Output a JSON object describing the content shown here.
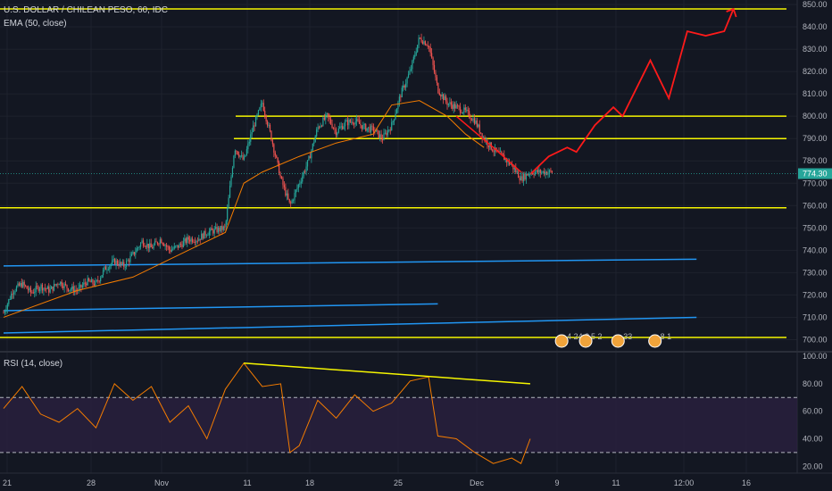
{
  "header": {
    "symbol_title": "U.S. DOLLAR / CHILEAN PESO, 60, IDC",
    "ema_label": "EMA (50, close)",
    "rsi_label": "RSI (14, close)"
  },
  "last_price": "774.30",
  "colors": {
    "background": "#131722",
    "up": "#26a69a",
    "down": "#ef5350",
    "ema": "#f57c00",
    "yellow": "#f5f500",
    "blue": "#2196f3",
    "forecast": "#ff1a1a",
    "rsi_line": "#f57c00",
    "rsi_band": "#2a2140"
  },
  "events": [
    {
      "label": "4 24 3",
      "x_day": 60.4
    },
    {
      "label": "5 2",
      "x_day": 63.0
    },
    {
      "label": "33",
      "x_day": 66.5
    },
    {
      "label": "8 1",
      "x_day": 70.5
    }
  ],
  "chart_data": [
    {
      "type": "line",
      "title": "U.S. DOLLAR / CHILEAN PESO, 60, IDC",
      "y_axis": {
        "ticks": [
          700,
          710,
          720,
          730,
          740,
          750,
          760,
          770,
          780,
          790,
          800,
          810,
          820,
          830,
          840,
          850
        ],
        "ylim": [
          695,
          852
        ]
      },
      "x_axis": {
        "ticks": [
          "21",
          "28",
          "Nov",
          "11",
          "18",
          "25",
          "Dec",
          "9",
          "11",
          "12:00",
          "16"
        ]
      },
      "series": [
        {
          "name": "EMA (50, close)",
          "points": [
            [
              0,
              710
            ],
            [
              8,
              722
            ],
            [
              14,
              728
            ],
            [
              20,
              740
            ],
            [
              24,
              748
            ],
            [
              26,
              770
            ],
            [
              28,
              775
            ],
            [
              32,
              782
            ],
            [
              36,
              788
            ],
            [
              40,
              792
            ],
            [
              42,
              805
            ],
            [
              45,
              807
            ],
            [
              48,
              800
            ],
            [
              50,
              792
            ],
            [
              52,
              786
            ]
          ]
        }
      ],
      "price_path": [
        [
          0,
          712
        ],
        [
          1,
          722
        ],
        [
          2,
          725
        ],
        [
          3,
          721
        ],
        [
          4,
          724
        ],
        [
          5,
          722
        ],
        [
          6,
          726
        ],
        [
          7,
          723
        ],
        [
          8,
          722
        ],
        [
          9,
          726
        ],
        [
          10,
          725
        ],
        [
          11,
          732
        ],
        [
          12,
          735
        ],
        [
          13,
          733
        ],
        [
          14,
          738
        ],
        [
          15,
          744
        ],
        [
          16,
          741
        ],
        [
          17,
          745
        ],
        [
          18,
          740
        ],
        [
          19,
          742
        ],
        [
          20,
          745
        ],
        [
          21,
          745
        ],
        [
          22,
          748
        ],
        [
          23,
          749
        ],
        [
          24,
          750
        ],
        [
          25,
          786
        ],
        [
          26,
          780
        ],
        [
          27,
          795
        ],
        [
          28,
          806
        ],
        [
          29,
          790
        ],
        [
          30,
          772
        ],
        [
          31,
          760
        ],
        [
          32,
          770
        ],
        [
          33,
          780
        ],
        [
          34,
          795
        ],
        [
          35,
          800
        ],
        [
          36,
          793
        ],
        [
          37,
          797
        ],
        [
          38,
          798
        ],
        [
          39,
          795
        ],
        [
          40,
          794
        ],
        [
          41,
          790
        ],
        [
          42,
          796
        ],
        [
          43,
          810
        ],
        [
          44,
          820
        ],
        [
          45,
          835
        ],
        [
          46,
          832
        ],
        [
          47,
          812
        ],
        [
          48,
          806
        ],
        [
          49,
          804
        ],
        [
          50,
          802
        ],
        [
          51,
          798
        ],
        [
          52,
          790
        ],
        [
          53,
          785
        ],
        [
          54,
          782
        ],
        [
          55,
          778
        ],
        [
          56,
          772
        ],
        [
          57,
          775
        ]
      ],
      "horizontal_levels": [
        848,
        800,
        790,
        759,
        701
      ],
      "trend_lines": [
        {
          "color": "blue",
          "from": [
            0,
            733
          ],
          "to": [
            75,
            736
          ]
        },
        {
          "color": "blue",
          "from": [
            0,
            713
          ],
          "to": [
            47,
            716
          ]
        },
        {
          "color": "blue",
          "from": [
            0,
            703
          ],
          "to": [
            75,
            710
          ]
        }
      ],
      "forecast": [
        [
          57,
          774
        ],
        [
          59,
          782
        ],
        [
          61,
          786
        ],
        [
          62,
          784
        ],
        [
          64,
          796
        ],
        [
          66,
          804
        ],
        [
          67,
          800
        ],
        [
          70,
          825
        ],
        [
          72,
          808
        ],
        [
          74,
          838
        ],
        [
          76,
          836
        ],
        [
          78,
          838
        ],
        [
          79,
          848
        ]
      ]
    },
    {
      "type": "line",
      "title": "RSI (14, close)",
      "y_axis": {
        "ticks": [
          20,
          40,
          60,
          80,
          100
        ],
        "ylim": [
          15,
          102
        ]
      },
      "bands": {
        "upper": 70,
        "lower": 30
      },
      "series": [
        {
          "name": "RSI (14, close)",
          "points": [
            [
              0,
              62
            ],
            [
              2,
              78
            ],
            [
              4,
              58
            ],
            [
              6,
              52
            ],
            [
              8,
              62
            ],
            [
              10,
              48
            ],
            [
              12,
              80
            ],
            [
              14,
              68
            ],
            [
              16,
              78
            ],
            [
              18,
              52
            ],
            [
              20,
              64
            ],
            [
              22,
              40
            ],
            [
              24,
              76
            ],
            [
              26,
              95
            ],
            [
              28,
              78
            ],
            [
              30,
              80
            ],
            [
              31,
              30
            ],
            [
              32,
              35
            ],
            [
              34,
              68
            ],
            [
              36,
              55
            ],
            [
              38,
              72
            ],
            [
              40,
              60
            ],
            [
              42,
              66
            ],
            [
              44,
              82
            ],
            [
              46,
              85
            ],
            [
              47,
              42
            ],
            [
              49,
              40
            ],
            [
              51,
              30
            ],
            [
              53,
              22
            ],
            [
              55,
              26
            ],
            [
              56,
              22
            ],
            [
              57,
              40
            ]
          ]
        }
      ],
      "trend_lines": [
        {
          "color": "yellow",
          "from": [
            26,
            95
          ],
          "to": [
            57,
            80
          ]
        }
      ]
    }
  ]
}
